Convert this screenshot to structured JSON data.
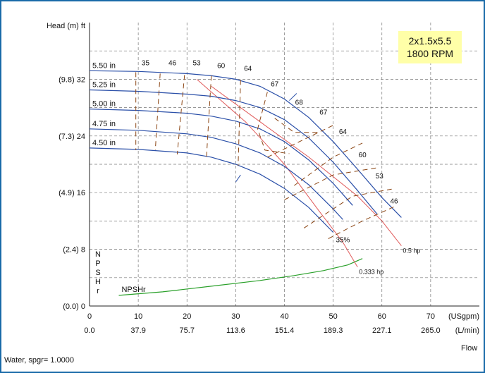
{
  "chart_data": {
    "type": "line",
    "title": "2x1.5x5.5",
    "subtitle": "1800 RPM",
    "ylabel": "Head (m) ft",
    "xlabel": "Flow",
    "x_unit_primary": "(USgpm)",
    "x_unit_secondary": "(L/min)",
    "xlim": [
      0,
      80
    ],
    "ylim": [
      0,
      40
    ],
    "x_ticks": [
      0,
      10,
      20,
      30,
      40,
      50,
      60,
      70
    ],
    "x_tick_labels_secondary": [
      "0.0",
      "37.9",
      "75.7",
      "113.6",
      "151.4",
      "189.3",
      "227.1",
      "265.0"
    ],
    "y_ticks": [
      0,
      8,
      16,
      24,
      32
    ],
    "y_tick_labels": [
      "(0.0) 0",
      "(2.4) 8",
      "(4.9) 16",
      "(7.3) 24",
      "(9.8) 32"
    ],
    "grid": true,
    "impeller_curves": [
      {
        "name": "5.50 in",
        "x": [
          0,
          10,
          20,
          25,
          30,
          35,
          40,
          45,
          50,
          55,
          60,
          64
        ],
        "y": [
          33.2,
          33.1,
          32.8,
          32.5,
          32.0,
          31.0,
          29.2,
          26.6,
          23.2,
          19.3,
          15.3,
          12.5
        ]
      },
      {
        "name": "5.25 in",
        "x": [
          0,
          10,
          20,
          25,
          30,
          35,
          40,
          45,
          50,
          55,
          59
        ],
        "y": [
          30.5,
          30.3,
          29.9,
          29.6,
          29.0,
          28.0,
          26.3,
          23.7,
          20.3,
          16.3,
          13.0
        ]
      },
      {
        "name": "5.00 in",
        "x": [
          0,
          10,
          20,
          25,
          30,
          35,
          40,
          45,
          50,
          54
        ],
        "y": [
          27.8,
          27.6,
          27.2,
          26.8,
          26.1,
          25.0,
          23.2,
          20.6,
          17.3,
          14.2
        ]
      },
      {
        "name": "4.75 in",
        "x": [
          0,
          10,
          20,
          25,
          30,
          35,
          40,
          45,
          50,
          52
        ],
        "y": [
          25.0,
          24.8,
          24.3,
          23.8,
          22.9,
          21.6,
          19.7,
          17.1,
          13.7,
          12.2
        ]
      },
      {
        "name": "4.50 in",
        "x": [
          0,
          10,
          20,
          25,
          30,
          35,
          40,
          45,
          50
        ],
        "y": [
          22.3,
          22.1,
          21.6,
          21.0,
          20.0,
          18.6,
          16.6,
          13.9,
          10.4
        ]
      }
    ],
    "efficiency_labels": [
      "35",
      "46",
      "53",
      "60",
      "64",
      "67",
      "68",
      "67",
      "64",
      "60",
      "53",
      "46",
      "35%"
    ],
    "power_curves": [
      {
        "name": "0.5 hp",
        "x": [
          25,
          35,
          45,
          55,
          60,
          64
        ],
        "y": [
          31.0,
          26.0,
          21.0,
          15.5,
          12.0,
          8.5
        ]
      },
      {
        "name": "0.333 hp",
        "x": [
          22,
          32,
          40,
          47,
          52,
          55
        ],
        "y": [
          32.0,
          26.0,
          20.0,
          13.5,
          9.0,
          5.5
        ]
      }
    ],
    "npsh_curve": {
      "name": "NPSHr",
      "x": [
        6,
        15,
        25,
        35,
        42,
        48,
        53,
        56
      ],
      "y": [
        1.5,
        2.0,
        2.8,
        3.6,
        4.3,
        5.0,
        5.8,
        6.7
      ]
    },
    "npsh_axis_letters": [
      "N",
      "P",
      "S",
      "H",
      "r"
    ]
  },
  "footer": {
    "fluid": "Water, spgr= 1.0000",
    "flow_label": "Flow"
  }
}
